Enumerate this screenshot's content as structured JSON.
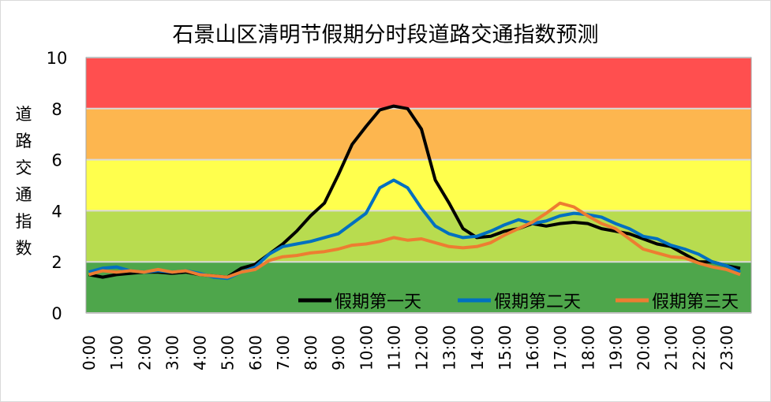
{
  "chart_data": {
    "type": "line",
    "title": "石景山区清明节假期分时段道路交通指数预测",
    "ylabel": "道路交通指数",
    "xlabel": "",
    "ylim": [
      0,
      10
    ],
    "yticks": [
      "0",
      "2",
      "4",
      "6",
      "8",
      "10"
    ],
    "xticks": [
      "0:00",
      "1:00",
      "2:00",
      "3:00",
      "4:00",
      "5:00",
      "6:00",
      "7:00",
      "8:00",
      "9:00",
      "10:00",
      "11:00",
      "12:00",
      "13:00",
      "14:00",
      "15:00",
      "16:00",
      "17:00",
      "18:00",
      "19:00",
      "20:00",
      "21:00",
      "22:00",
      "23:00"
    ],
    "x_hours": [
      0,
      0.5,
      1,
      1.5,
      2,
      2.5,
      3,
      3.5,
      4,
      4.5,
      5,
      5.5,
      6,
      6.5,
      7,
      7.5,
      8,
      8.5,
      9,
      9.5,
      10,
      10.5,
      11,
      11.5,
      12,
      12.5,
      13,
      13.5,
      14,
      14.5,
      15,
      15.5,
      16,
      16.5,
      17,
      17.5,
      18,
      18.5,
      19,
      19.5,
      20,
      20.5,
      21,
      21.5,
      22,
      22.5,
      23,
      23.5
    ],
    "bands": [
      {
        "from": 0,
        "to": 2,
        "color": "#4ea64b"
      },
      {
        "from": 2,
        "to": 4,
        "color": "#b8dc4f"
      },
      {
        "from": 4,
        "to": 6,
        "color": "#ffff4d"
      },
      {
        "from": 6,
        "to": 8,
        "color": "#fdb64f"
      },
      {
        "from": 8,
        "to": 10,
        "color": "#ff4f4f"
      }
    ],
    "legend_position": "bottom-inside",
    "series": [
      {
        "name": "假期第一天",
        "color": "#000000",
        "values": [
          1.5,
          1.4,
          1.5,
          1.55,
          1.6,
          1.6,
          1.55,
          1.6,
          1.5,
          1.45,
          1.4,
          1.75,
          1.9,
          2.3,
          2.7,
          3.2,
          3.8,
          4.3,
          5.4,
          6.6,
          7.3,
          7.95,
          8.1,
          8.0,
          7.2,
          5.2,
          4.3,
          3.3,
          2.95,
          3.0,
          3.2,
          3.3,
          3.5,
          3.4,
          3.5,
          3.55,
          3.5,
          3.3,
          3.2,
          3.1,
          2.9,
          2.7,
          2.6,
          2.3,
          2.0,
          2.0,
          1.85,
          1.75
        ]
      },
      {
        "name": "假期第二天",
        "color": "#0070c0",
        "values": [
          1.6,
          1.75,
          1.8,
          1.65,
          1.6,
          1.65,
          1.6,
          1.65,
          1.55,
          1.4,
          1.35,
          1.6,
          1.8,
          2.3,
          2.6,
          2.7,
          2.8,
          2.95,
          3.1,
          3.5,
          3.9,
          4.9,
          5.2,
          4.9,
          4.1,
          3.4,
          3.1,
          2.95,
          3.0,
          3.2,
          3.45,
          3.65,
          3.5,
          3.6,
          3.8,
          3.9,
          3.85,
          3.75,
          3.5,
          3.3,
          3.0,
          2.9,
          2.65,
          2.5,
          2.3,
          2.0,
          1.85,
          1.6
        ]
      },
      {
        "name": "假期第三天",
        "color": "#ed7d31",
        "values": [
          1.5,
          1.65,
          1.6,
          1.65,
          1.6,
          1.7,
          1.6,
          1.65,
          1.5,
          1.45,
          1.4,
          1.6,
          1.7,
          2.05,
          2.2,
          2.25,
          2.35,
          2.4,
          2.5,
          2.65,
          2.7,
          2.8,
          2.95,
          2.85,
          2.9,
          2.75,
          2.6,
          2.55,
          2.6,
          2.75,
          3.05,
          3.3,
          3.55,
          3.9,
          4.3,
          4.15,
          3.8,
          3.5,
          3.3,
          2.9,
          2.5,
          2.35,
          2.2,
          2.15,
          1.95,
          1.8,
          1.7,
          1.5
        ]
      }
    ]
  }
}
